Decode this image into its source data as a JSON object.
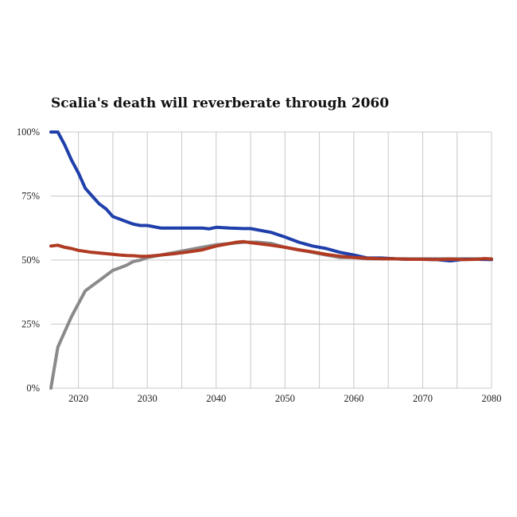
{
  "chart_data": {
    "type": "line",
    "title": "Scalia's death will reverberate through 2060",
    "xlabel": "",
    "ylabel": "",
    "xlim": [
      2016,
      2080
    ],
    "ylim": [
      0,
      100
    ],
    "x_ticks": [
      2020,
      2030,
      2040,
      2050,
      2060,
      2070,
      2080
    ],
    "x_tick_labels": [
      "2020",
      "2030",
      "2040",
      "2050",
      "2060",
      "2070",
      "2080"
    ],
    "y_ticks": [
      0,
      25,
      50,
      75,
      100
    ],
    "y_tick_labels": [
      "0%",
      "25%",
      "50%",
      "75%",
      "100%"
    ],
    "grid": true,
    "legend": "none",
    "series": [
      {
        "color": "#8a8a8a",
        "points": [
          [
            2016,
            0
          ],
          [
            2017,
            16
          ],
          [
            2018,
            22
          ],
          [
            2019,
            28
          ],
          [
            2020,
            33
          ],
          [
            2021,
            38
          ],
          [
            2022,
            40
          ],
          [
            2023,
            42
          ],
          [
            2024,
            44
          ],
          [
            2025,
            46
          ],
          [
            2026,
            47
          ],
          [
            2027,
            48
          ],
          [
            2028,
            49.5
          ],
          [
            2029,
            50
          ],
          [
            2030,
            51
          ],
          [
            2032,
            52
          ],
          [
            2034,
            53
          ],
          [
            2036,
            54
          ],
          [
            2038,
            55
          ],
          [
            2040,
            56
          ],
          [
            2042,
            56.5
          ],
          [
            2044,
            57
          ],
          [
            2046,
            57
          ],
          [
            2048,
            56.5
          ],
          [
            2050,
            55
          ],
          [
            2052,
            54
          ],
          [
            2054,
            53
          ],
          [
            2056,
            52
          ],
          [
            2058,
            51
          ],
          [
            2060,
            51
          ],
          [
            2062,
            50.5
          ],
          [
            2064,
            50.5
          ],
          [
            2066,
            50.5
          ],
          [
            2068,
            50.5
          ],
          [
            2070,
            50.5
          ],
          [
            2072,
            50.5
          ],
          [
            2074,
            50.5
          ],
          [
            2076,
            50.5
          ],
          [
            2078,
            50.5
          ],
          [
            2080,
            50.5
          ]
        ]
      },
      {
        "color": "#1f3faa",
        "points": [
          [
            2016,
            100
          ],
          [
            2017,
            100
          ],
          [
            2018,
            95
          ],
          [
            2019,
            89
          ],
          [
            2020,
            84
          ],
          [
            2021,
            78
          ],
          [
            2022,
            75
          ],
          [
            2023,
            72
          ],
          [
            2024,
            70
          ],
          [
            2025,
            67
          ],
          [
            2026,
            66
          ],
          [
            2027,
            65
          ],
          [
            2028,
            64
          ],
          [
            2029,
            63.5
          ],
          [
            2030,
            63.5
          ],
          [
            2031,
            63
          ],
          [
            2032,
            62.5
          ],
          [
            2034,
            62.5
          ],
          [
            2036,
            62.5
          ],
          [
            2038,
            62.5
          ],
          [
            2039,
            62.2
          ],
          [
            2040,
            62.8
          ],
          [
            2042,
            62.5
          ],
          [
            2044,
            62.3
          ],
          [
            2045,
            62.3
          ],
          [
            2046,
            61.8
          ],
          [
            2048,
            60.8
          ],
          [
            2050,
            59
          ],
          [
            2052,
            57
          ],
          [
            2054,
            55.5
          ],
          [
            2056,
            54.5
          ],
          [
            2058,
            53
          ],
          [
            2060,
            52
          ],
          [
            2062,
            50.8
          ],
          [
            2064,
            50.8
          ],
          [
            2066,
            50.5
          ],
          [
            2068,
            50.3
          ],
          [
            2070,
            50.3
          ],
          [
            2072,
            50.2
          ],
          [
            2074,
            49.7
          ],
          [
            2076,
            50.3
          ],
          [
            2078,
            50.3
          ],
          [
            2080,
            50.2
          ]
        ]
      },
      {
        "color": "#b03a22",
        "points": [
          [
            2016,
            55.5
          ],
          [
            2017,
            55.8
          ],
          [
            2018,
            55
          ],
          [
            2019,
            54.5
          ],
          [
            2020,
            53.8
          ],
          [
            2022,
            53
          ],
          [
            2024,
            52.5
          ],
          [
            2026,
            52
          ],
          [
            2027,
            51.8
          ],
          [
            2028,
            51.7
          ],
          [
            2029,
            51.5
          ],
          [
            2030,
            51.5
          ],
          [
            2031,
            51.7
          ],
          [
            2032,
            52
          ],
          [
            2034,
            52.5
          ],
          [
            2036,
            53.2
          ],
          [
            2038,
            54
          ],
          [
            2040,
            55.5
          ],
          [
            2042,
            56.5
          ],
          [
            2043,
            57
          ],
          [
            2044,
            57.2
          ],
          [
            2045,
            56.8
          ],
          [
            2046,
            56.5
          ],
          [
            2048,
            55.8
          ],
          [
            2050,
            55
          ],
          [
            2052,
            54
          ],
          [
            2054,
            53.2
          ],
          [
            2056,
            52.2
          ],
          [
            2058,
            51.5
          ],
          [
            2060,
            51
          ],
          [
            2062,
            50.7
          ],
          [
            2064,
            50.5
          ],
          [
            2066,
            50.5
          ],
          [
            2068,
            50.3
          ],
          [
            2070,
            50.3
          ],
          [
            2072,
            50.2
          ],
          [
            2074,
            50.4
          ],
          [
            2076,
            50.2
          ],
          [
            2078,
            50.3
          ],
          [
            2079,
            50.6
          ],
          [
            2080,
            50.4
          ]
        ]
      }
    ]
  }
}
